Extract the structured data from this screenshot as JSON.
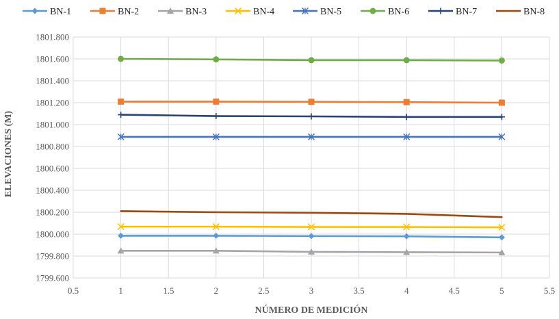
{
  "chart_data": {
    "type": "line",
    "title": "",
    "xlabel": "NÚMERO DE MEDICIÓN",
    "ylabel": "ELEVACIONES (M)",
    "xlim": [
      0.5,
      5.5
    ],
    "ylim": [
      1799.6,
      1801.8
    ],
    "x_ticks": [
      "0.5",
      "1",
      "1.5",
      "2",
      "2.5",
      "3",
      "3.5",
      "4",
      "4.5",
      "5",
      "5.5"
    ],
    "y_ticks": [
      "1799.600",
      "1799.800",
      "1800.000",
      "1800.200",
      "1800.400",
      "1800.600",
      "1800.800",
      "1801.000",
      "1801.200",
      "1801.400",
      "1801.600",
      "1801.800"
    ],
    "grid": true,
    "legend_position": "top",
    "x": [
      1,
      2,
      3,
      4,
      5
    ],
    "series": [
      {
        "name": "BN-1",
        "color": "#5B9BD5",
        "marker": "diamond",
        "values": [
          1799.985,
          1799.985,
          1799.982,
          1799.98,
          1799.97
        ]
      },
      {
        "name": "BN-2",
        "color": "#ED7D31",
        "marker": "square",
        "values": [
          1801.21,
          1801.21,
          1801.208,
          1801.205,
          1801.2
        ]
      },
      {
        "name": "BN-3",
        "color": "#A5A5A5",
        "marker": "triangle",
        "values": [
          1799.848,
          1799.848,
          1799.838,
          1799.835,
          1799.832
        ]
      },
      {
        "name": "BN-4",
        "color": "#FFC000",
        "marker": "x",
        "values": [
          1800.068,
          1800.068,
          1800.065,
          1800.065,
          1800.062
        ]
      },
      {
        "name": "BN-5",
        "color": "#4472C4",
        "marker": "asterisk",
        "values": [
          1800.888,
          1800.888,
          1800.888,
          1800.888,
          1800.888
        ]
      },
      {
        "name": "BN-6",
        "color": "#70AD47",
        "marker": "circle",
        "values": [
          1801.6,
          1801.595,
          1801.588,
          1801.588,
          1801.585
        ]
      },
      {
        "name": "BN-7",
        "color": "#264478",
        "marker": "plus",
        "values": [
          1801.09,
          1801.078,
          1801.075,
          1801.07,
          1801.07
        ]
      },
      {
        "name": "BN-8",
        "color": "#9E480E",
        "marker": "none",
        "values": [
          1800.21,
          1800.2,
          1800.195,
          1800.185,
          1800.155
        ]
      }
    ]
  }
}
